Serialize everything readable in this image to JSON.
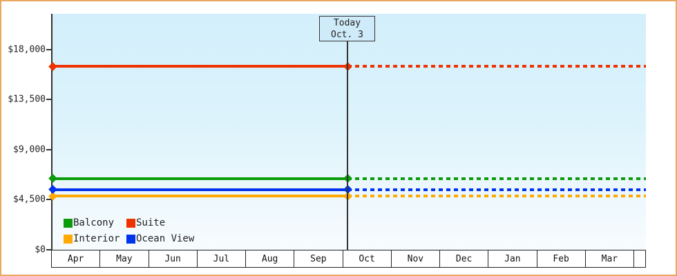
{
  "frame": {
    "border_color": "#e9a860",
    "background_color": "#ffffff",
    "plot_bg_top": "#d2effb",
    "plot_bg_bottom": "#f7fcfe"
  },
  "today_annotation": {
    "line1": "Today",
    "line2": "Oct. 3"
  },
  "chart_data": {
    "type": "line",
    "title": "",
    "xlabel": "",
    "ylabel": "",
    "categories": [
      "Apr",
      "May",
      "Jun",
      "Jul",
      "Aug",
      "Sep",
      "Oct",
      "Nov",
      "Dec",
      "Jan",
      "Feb",
      "Mar"
    ],
    "y_ticks": [
      {
        "value": 0,
        "label": "$0"
      },
      {
        "value": 4500,
        "label": "$4,500"
      },
      {
        "value": 9000,
        "label": "$9,000"
      },
      {
        "value": 13500,
        "label": "$13,500"
      },
      {
        "value": 18000,
        "label": "$18,000"
      }
    ],
    "ylim": [
      0,
      21250
    ],
    "grid": false,
    "legend_position": "inside-bottom-left",
    "series": [
      {
        "name": "Balcony",
        "color": "#0a9c0a",
        "value": 6400,
        "style": "solid-before-today-dashed-after"
      },
      {
        "name": "Suite",
        "color": "#ee3300",
        "value": 16500,
        "style": "solid-before-today-dashed-after"
      },
      {
        "name": "Interior",
        "color": "#ffaa00",
        "value": 4800,
        "style": "solid-before-today-dashed-after"
      },
      {
        "name": "Ocean View",
        "color": "#0033ee",
        "value": 5400,
        "style": "solid-before-today-dashed-after"
      }
    ],
    "today_marker": {
      "label": "Today",
      "date": "Oct. 3",
      "month_index": 6,
      "day_fraction": 0.1
    },
    "markers": "diamond at series start and at today line"
  },
  "legend": {
    "columns": 2,
    "items": [
      "Balcony",
      "Suite",
      "Interior",
      "Ocean View"
    ]
  }
}
